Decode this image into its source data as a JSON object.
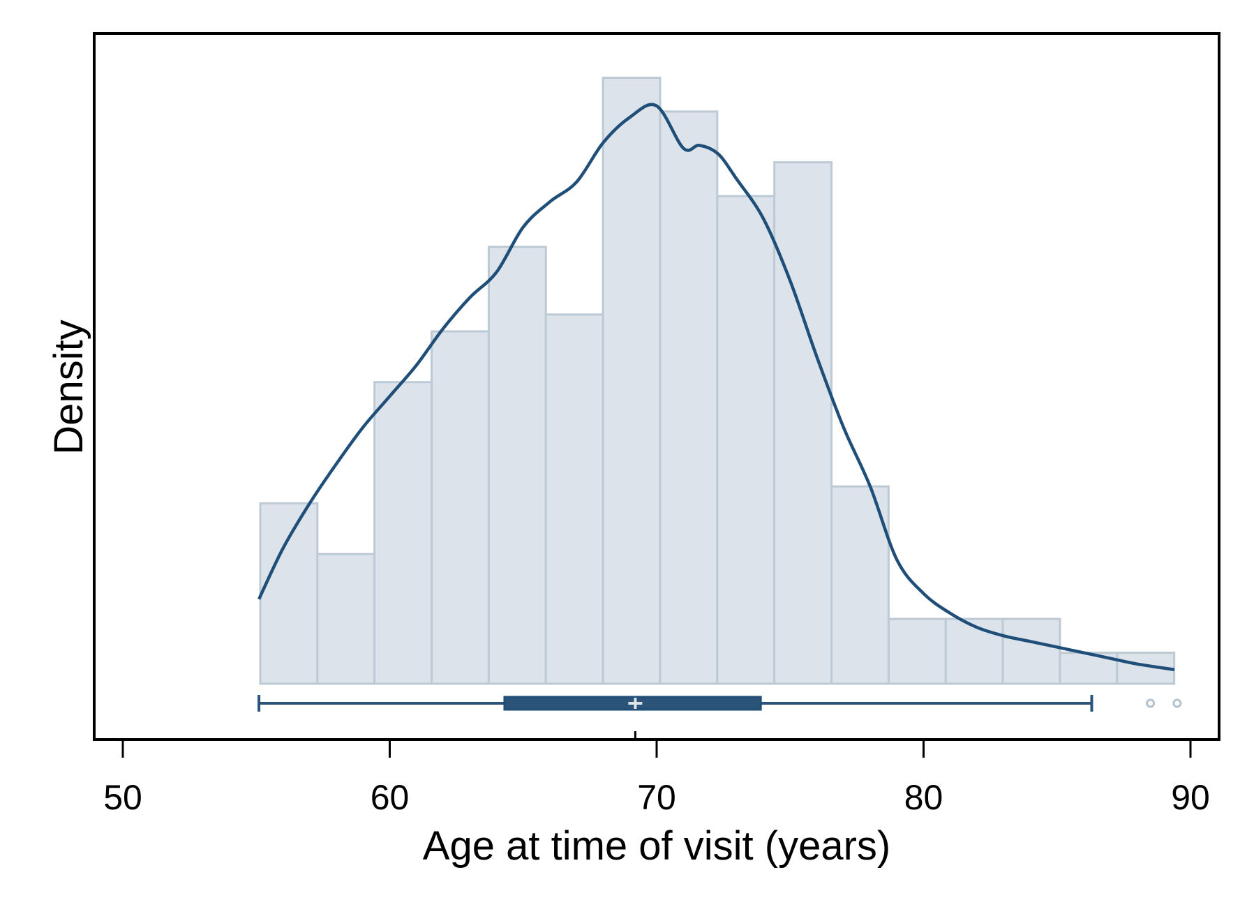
{
  "chart_data": {
    "type": "bar",
    "subtype": "histogram-with-density-and-boxplot",
    "xlabel": "Age at time of visit (years)",
    "ylabel": "Density",
    "xlim": [
      49,
      91
    ],
    "xticks": [
      "50",
      "60",
      "70",
      "80",
      "90"
    ],
    "xtick_values": [
      50,
      60,
      70,
      80,
      90
    ],
    "y_ticks_shown": false,
    "grid": false,
    "legend": "none",
    "bin_width": 2.14,
    "bins": [
      {
        "x0": 55.15,
        "x1": 57.29,
        "value": 6.4
      },
      {
        "x0": 57.29,
        "x1": 59.43,
        "value": 4.6
      },
      {
        "x0": 59.43,
        "x1": 61.57,
        "value": 10.7
      },
      {
        "x0": 61.57,
        "x1": 63.71,
        "value": 12.5
      },
      {
        "x0": 63.71,
        "x1": 65.85,
        "value": 15.5
      },
      {
        "x0": 65.85,
        "x1": 67.99,
        "value": 13.1
      },
      {
        "x0": 67.99,
        "x1": 70.13,
        "value": 21.5
      },
      {
        "x0": 70.13,
        "x1": 72.27,
        "value": 20.3
      },
      {
        "x0": 72.27,
        "x1": 74.41,
        "value": 17.3
      },
      {
        "x0": 74.41,
        "x1": 76.55,
        "value": 18.5
      },
      {
        "x0": 76.55,
        "x1": 78.69,
        "value": 7.0
      },
      {
        "x0": 78.69,
        "x1": 80.83,
        "value": 2.3
      },
      {
        "x0": 80.83,
        "x1": 82.97,
        "value": 2.3
      },
      {
        "x0": 82.97,
        "x1": 85.11,
        "value": 2.3
      },
      {
        "x0": 85.11,
        "x1": 87.25,
        "value": 1.1
      },
      {
        "x0": 87.25,
        "x1": 89.39,
        "value": 1.1
      }
    ],
    "density_curve": {
      "x": [
        55.1,
        56.0,
        57.0,
        58.0,
        59.0,
        60.0,
        61.0,
        62.0,
        63.0,
        64.0,
        65.0,
        66.0,
        67.0,
        68.0,
        69.0,
        70.0,
        71.0,
        71.6,
        72.3,
        73.0,
        74.0,
        75.0,
        76.0,
        77.0,
        78.0,
        79.0,
        80.0,
        81.0,
        82.0,
        83.0,
        84.0,
        85.0,
        86.0,
        87.0,
        88.0,
        89.4
      ],
      "y": [
        3.0,
        4.8,
        6.4,
        7.8,
        9.1,
        10.2,
        11.3,
        12.6,
        13.7,
        14.6,
        16.2,
        17.1,
        17.8,
        19.2,
        20.1,
        20.5,
        19.0,
        19.1,
        18.8,
        17.9,
        16.5,
        14.3,
        11.6,
        9.1,
        7.0,
        4.4,
        3.2,
        2.5,
        2.0,
        1.7,
        1.5,
        1.3,
        1.1,
        0.9,
        0.7,
        0.5
      ]
    },
    "boxplot": {
      "whisker_low": 55.1,
      "q1": 64.3,
      "median": 69.2,
      "q3": 73.9,
      "whisker_high": 86.3,
      "outliers": [
        88.5,
        89.5
      ]
    },
    "colors": {
      "bar_fill": "#dce3ea",
      "bar_stroke": "#bccad6",
      "curve": "#1f4e79",
      "box": "#2c5378",
      "outlier": "#b3c1ce",
      "median_marker": "#dce3ea"
    }
  }
}
